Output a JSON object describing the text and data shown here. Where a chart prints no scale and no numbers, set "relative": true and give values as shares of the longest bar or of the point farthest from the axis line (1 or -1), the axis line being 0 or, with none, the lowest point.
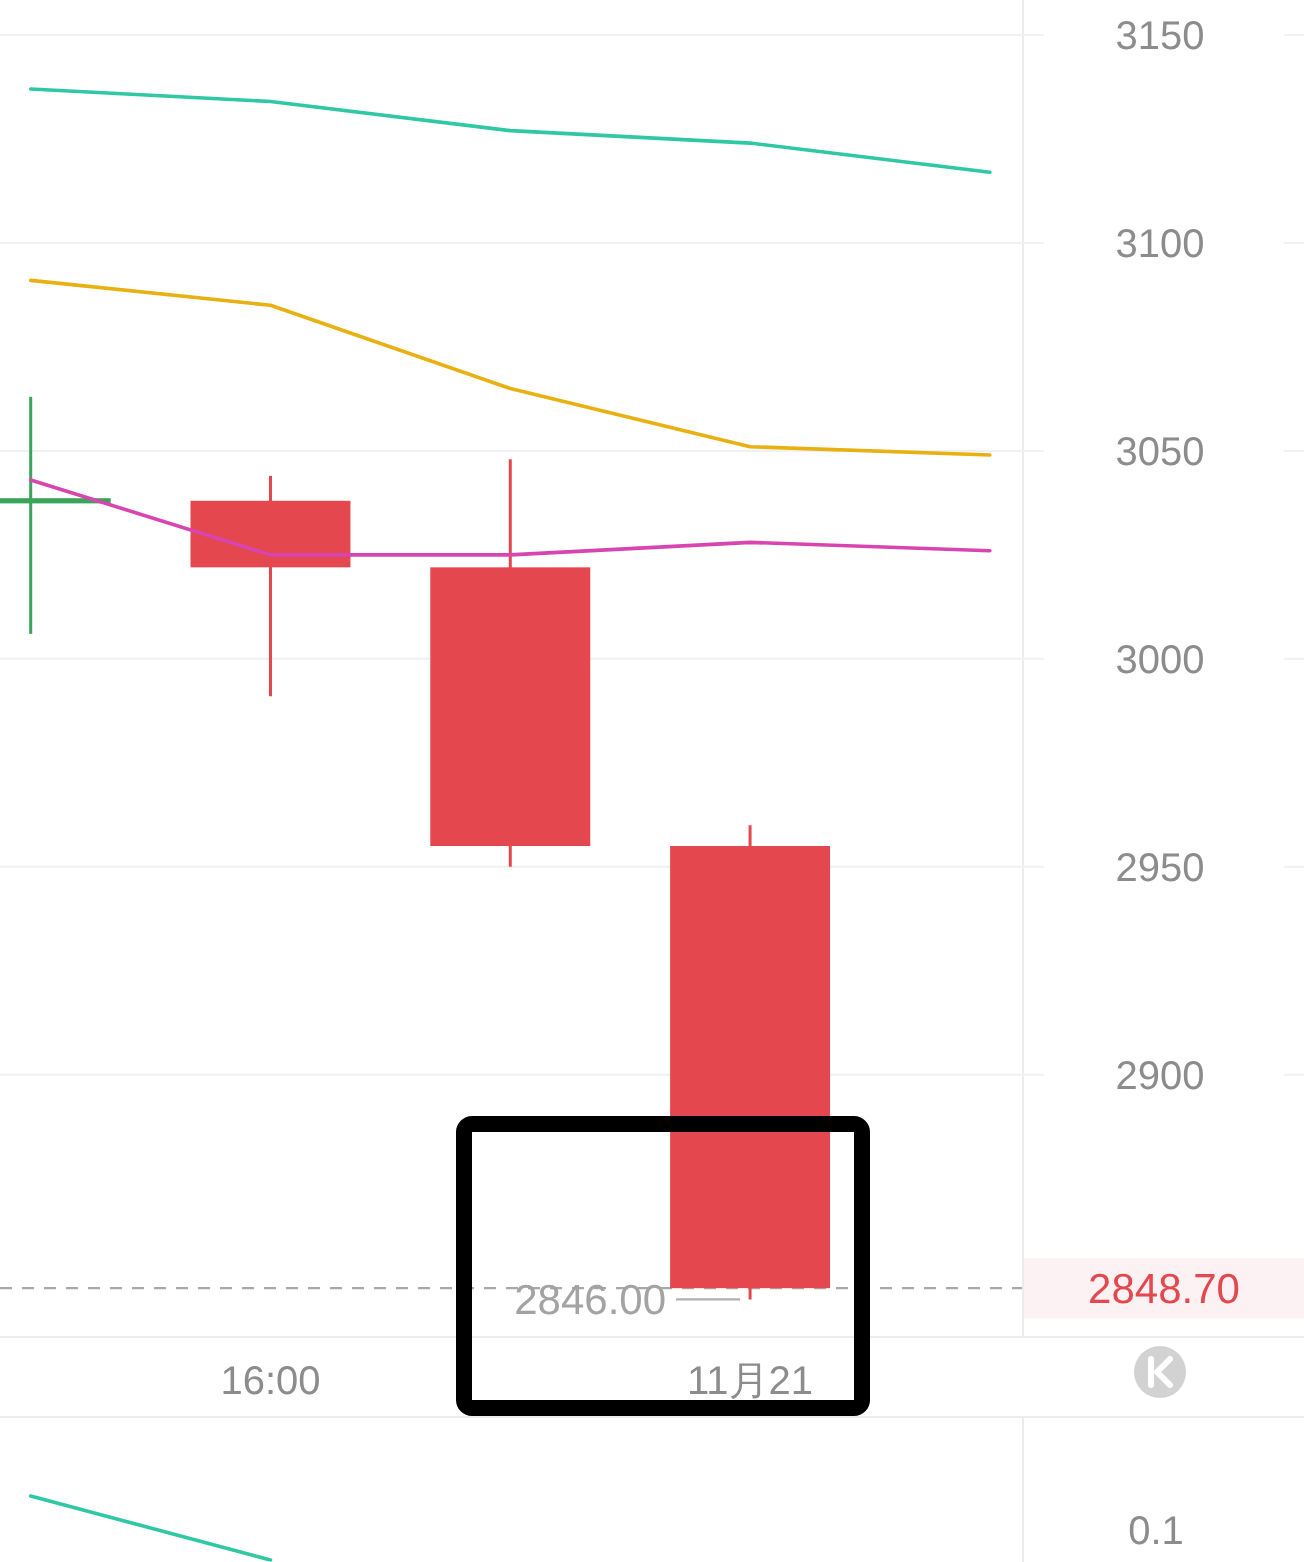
{
  "chart_data": [
    {
      "type": "candlestick",
      "categories": [
        null,
        "16:00",
        null,
        "11月21",
        null
      ],
      "ohlc": [
        [
          3038,
          3063,
          3006,
          3038
        ],
        [
          3038,
          3044,
          2991,
          3022
        ],
        [
          3022,
          3048,
          2950,
          2955
        ],
        [
          2955,
          2960,
          2846,
          2848.7
        ],
        null
      ],
      "colors": [
        "#3aa55a",
        "#e5474f",
        "#e5474f",
        "#e5474f",
        null
      ],
      "series": [
        {
          "type": "line",
          "color": "#2fc7a4",
          "values": [
            3137,
            3134,
            3127,
            3124,
            3117
          ]
        },
        {
          "type": "line",
          "color": "#e8b010",
          "values": [
            3091,
            3085,
            3065,
            3051,
            3049
          ]
        },
        {
          "type": "line",
          "color": "#d845b0",
          "values": [
            3043,
            3025,
            3025,
            3028,
            3026
          ]
        }
      ],
      "ylim": [
        2837.2,
        3158.4
      ],
      "yticks": [
        2900,
        2950,
        3000,
        3050,
        3100,
        3150
      ],
      "grid": "y",
      "ref_lines": [
        {
          "axis": "y",
          "value": 2848.7,
          "label": "2848.70",
          "color": "#a8a8a8",
          "line_style": "dashed"
        }
      ],
      "annotations": [
        {
          "text": "2846.00",
          "x": "11月21",
          "y": 2846
        }
      ]
    },
    {
      "type": "line",
      "relative": true,
      "categories": [
        null,
        null,
        null,
        null,
        null
      ],
      "series": [
        {
          "color": "#2fc7a4",
          "values": [
            1,
            0,
            null,
            null,
            null
          ]
        }
      ],
      "annotations": [
        "0.1"
      ]
    }
  ]
}
